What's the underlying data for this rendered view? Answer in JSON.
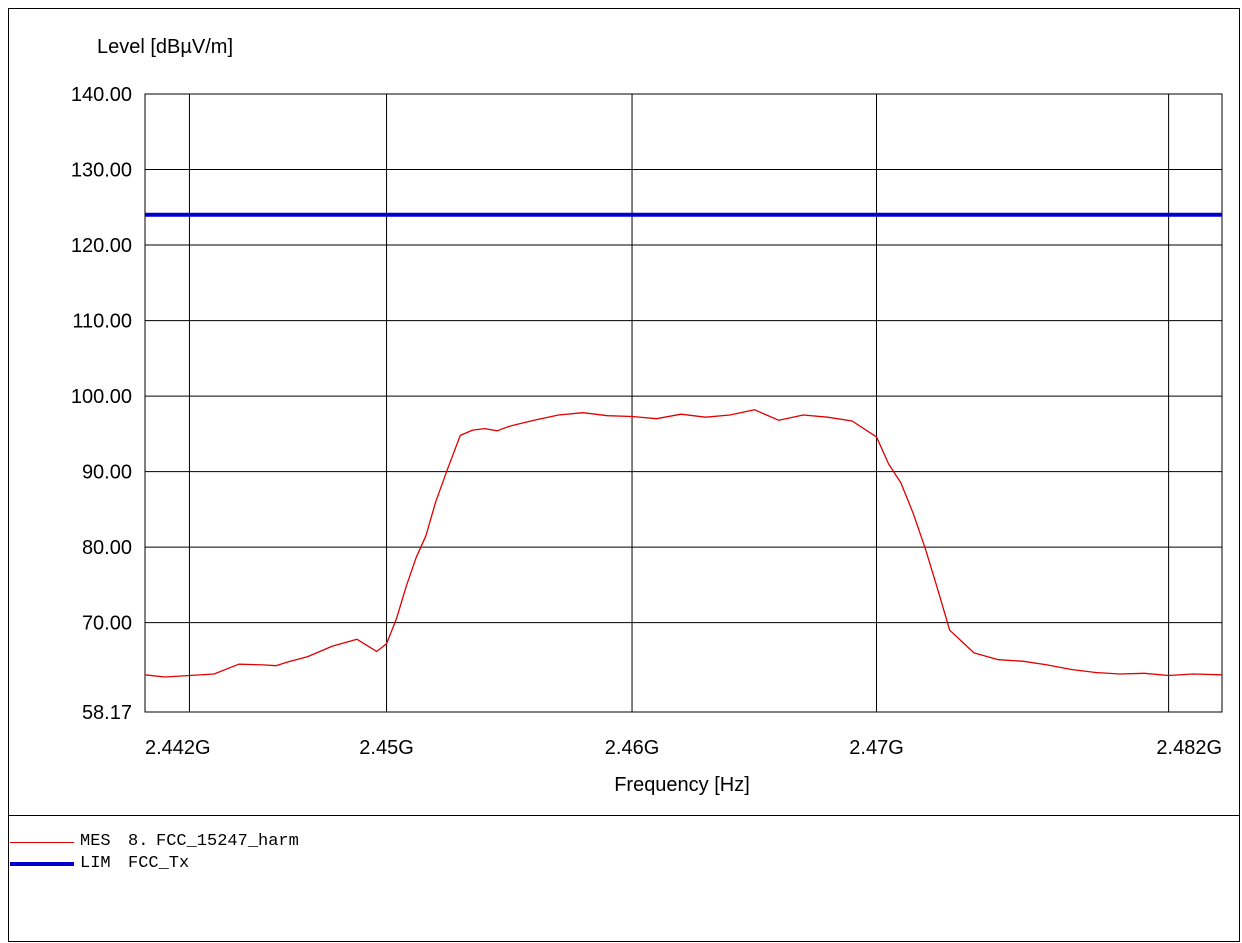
{
  "chart_data": {
    "type": "line",
    "ylabel": "Level [dBµV/m]",
    "xlabel": "Frequency [Hz]",
    "xlim": [
      2440200000.0,
      2484200000.0
    ],
    "ylim": [
      58.17,
      140.0
    ],
    "x_log_scale": true,
    "y_ticks": [
      {
        "value": 140.0,
        "label": "140.00"
      },
      {
        "value": 130.0,
        "label": "130.00"
      },
      {
        "value": 120.0,
        "label": "120.00"
      },
      {
        "value": 110.0,
        "label": "110.00"
      },
      {
        "value": 100.0,
        "label": "100.00"
      },
      {
        "value": 90.0,
        "label": "90.00"
      },
      {
        "value": 80.0,
        "label": "80.00"
      },
      {
        "value": 70.0,
        "label": "70.00"
      },
      {
        "value": 58.17,
        "label": "58.17"
      }
    ],
    "x_ticks": [
      {
        "value": 2442000000.0,
        "label": "2.442G"
      },
      {
        "value": 2450000000.0,
        "label": "2.45G"
      },
      {
        "value": 2460000000.0,
        "label": "2.46G"
      },
      {
        "value": 2470000000.0,
        "label": "2.47G"
      },
      {
        "value": 2482000000.0,
        "label": "2.482G"
      }
    ],
    "grid": true,
    "series": [
      {
        "name": "FCC_15247_harm",
        "type_label": "MES",
        "prefix": "8.",
        "color": "#e00000",
        "x": [
          2440200000.0,
          2441000000.0,
          2442000000.0,
          2443000000.0,
          2444000000.0,
          2445000000.0,
          2445500000.0,
          2446000000.0,
          2446800000.0,
          2447800000.0,
          2448800000.0,
          2449600000.0,
          2450000000.0,
          2450400000.0,
          2450800000.0,
          2451200000.0,
          2451600000.0,
          2452000000.0,
          2452500000.0,
          2453000000.0,
          2453500000.0,
          2454000000.0,
          2454500000.0,
          2455000000.0,
          2456000000.0,
          2457000000.0,
          2458000000.0,
          2459000000.0,
          2460000000.0,
          2461000000.0,
          2462000000.0,
          2463000000.0,
          2464000000.0,
          2465000000.0,
          2466000000.0,
          2467000000.0,
          2468000000.0,
          2469000000.0,
          2470000000.0,
          2470500000.0,
          2471000000.0,
          2471500000.0,
          2472000000.0,
          2472500000.0,
          2473000000.0,
          2474000000.0,
          2475000000.0,
          2476000000.0,
          2477000000.0,
          2478000000.0,
          2479000000.0,
          2480000000.0,
          2481000000.0,
          2482000000.0,
          2483000000.0,
          2484200000.0
        ],
        "y": [
          63.1,
          62.8,
          63.0,
          63.2,
          64.5,
          64.4,
          64.3,
          64.8,
          65.5,
          66.9,
          67.8,
          66.2,
          67.2,
          70.5,
          74.8,
          78.6,
          81.5,
          86.0,
          90.5,
          94.8,
          95.5,
          95.7,
          95.4,
          96.0,
          96.8,
          97.5,
          97.8,
          97.4,
          97.3,
          97.0,
          97.6,
          97.2,
          97.5,
          98.2,
          96.8,
          97.5,
          97.2,
          96.7,
          94.6,
          91.0,
          88.5,
          84.5,
          79.8,
          74.5,
          69.0,
          66.0,
          65.1,
          64.9,
          64.4,
          63.8,
          63.4,
          63.2,
          63.3,
          63.0,
          63.2,
          63.1
        ]
      },
      {
        "name": "FCC_Tx",
        "type_label": "LIM",
        "color": "#0000d0",
        "x": [
          2440200000.0,
          2484200000.0
        ],
        "y": [
          124.0,
          124.0
        ]
      }
    ]
  }
}
